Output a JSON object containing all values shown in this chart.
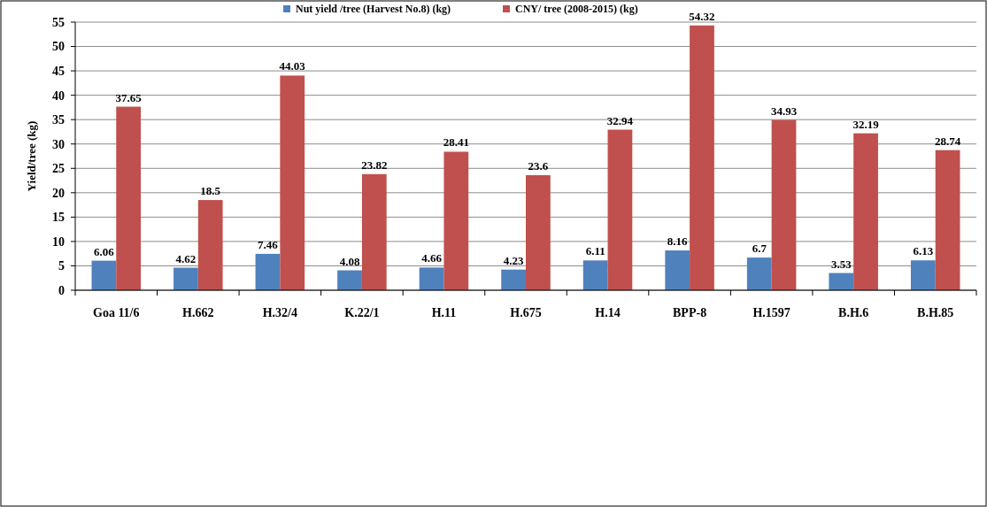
{
  "chart_data": {
    "type": "bar",
    "ylabel": "Yield/tree (kg)",
    "categories": [
      "Goa 11/6",
      "H.662",
      "H.32/4",
      "K.22/1",
      "H.11",
      "H.675",
      "H.14",
      "BPP-8",
      "H.1597",
      "B.H.6",
      "B.H.85"
    ],
    "series": [
      {
        "name": "Nut yield /tree (Harvest No.8) (kg)",
        "color": "#4f81bd",
        "values": [
          6.06,
          4.62,
          7.46,
          4.08,
          4.66,
          4.23,
          6.11,
          8.16,
          6.7,
          3.53,
          6.13
        ]
      },
      {
        "name": "CNY/ tree (2008-2015) (kg)",
        "color": "#c0504d",
        "values": [
          37.65,
          18.5,
          44.03,
          23.82,
          28.41,
          23.6,
          32.94,
          54.32,
          34.93,
          32.19,
          28.74
        ]
      }
    ],
    "ylim": [
      0,
      55
    ],
    "yticks": [
      0,
      5,
      10,
      15,
      20,
      25,
      30,
      35,
      40,
      45,
      50,
      55
    ],
    "grid": "y",
    "legend": "top",
    "data_labels": true
  }
}
